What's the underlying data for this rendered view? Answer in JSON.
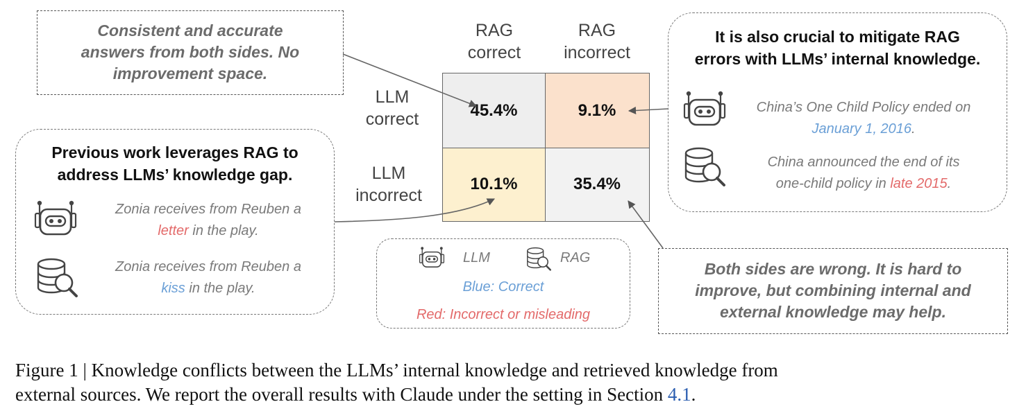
{
  "matrix": {
    "col_headers": [
      {
        "line1": "RAG",
        "line2": "correct"
      },
      {
        "line1": "RAG",
        "line2": "incorrect"
      }
    ],
    "row_headers": [
      {
        "line1": "LLM",
        "line2": "correct"
      },
      {
        "line1": "LLM",
        "line2": "incorrect"
      }
    ],
    "cells": [
      {
        "value": "45.4%",
        "color": "#eeeeee"
      },
      {
        "value": "9.1%",
        "color": "#fbe1cc"
      },
      {
        "value": "10.1%",
        "color": "#fdf0cf"
      },
      {
        "value": "35.4%",
        "color": "#f2f2f2"
      }
    ]
  },
  "callout_top_left": {
    "line1": "Consistent and accurate",
    "line2": "answers from both sides. No",
    "line3": "improvement space."
  },
  "callout_bottom_right": {
    "line1": "Both sides are wrong. It is hard to",
    "line2": "improve, but combining internal and",
    "line3": "external knowledge may help."
  },
  "panel_left": {
    "title_line1": "Previous work leverages RAG to",
    "title_line2": "address LLMs’ knowledge gap.",
    "llm_example": {
      "pre": "Zonia receives from Reuben a",
      "highlight": "letter",
      "post": " in the play."
    },
    "rag_example": {
      "pre": "Zonia receives from Reuben a",
      "highlight": "kiss",
      "post": " in the play."
    }
  },
  "panel_right": {
    "title_line1": "It is also crucial to mitigate RAG",
    "title_line2": "errors with LLMs’ internal knowledge.",
    "llm_example": {
      "pre": "China’s One Child Policy ended on",
      "highlight": "January 1, 2016",
      "post": "."
    },
    "rag_example": {
      "pre_line1": "China announced the end of its",
      "pre_line2": "one-child policy in ",
      "highlight": "late 2015",
      "post": "."
    }
  },
  "legend": {
    "llm_label": "LLM",
    "rag_label": "RAG",
    "blue_text": "Blue: Correct",
    "red_text": "Red: Incorrect or misleading",
    "blue_color": "#6a9fd6",
    "red_color": "#e36a6a"
  },
  "icons": [
    "robot-icon",
    "database-search-icon"
  ],
  "caption": {
    "line1": "Figure 1 | Knowledge conflicts between the LLMs’ internal knowledge and retrieved knowledge from",
    "line2_pre": "external sources. We report the overall results with Claude under the setting in Section ",
    "ref": "4.1",
    "line2_post": "."
  }
}
